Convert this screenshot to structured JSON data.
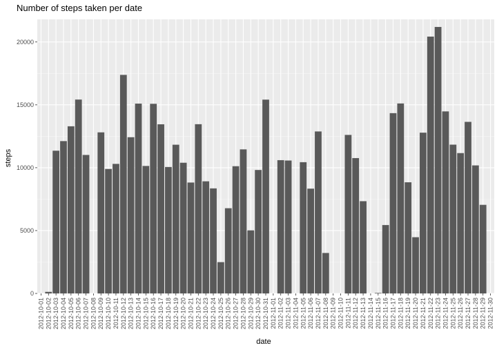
{
  "chart_data": {
    "type": "bar",
    "title": "Number of steps taken per date",
    "xlabel": "date",
    "ylabel": "steps",
    "ylim": [
      0,
      21800
    ],
    "yticks": [
      0,
      5000,
      10000,
      15000,
      20000
    ],
    "grid": true,
    "colors": {
      "panel": "#ebebeb",
      "grid_major": "#ffffff",
      "bar": "#595959"
    },
    "categories": [
      "2012-10-01",
      "2012-10-02",
      "2012-10-03",
      "2012-10-04",
      "2012-10-05",
      "2012-10-06",
      "2012-10-07",
      "2012-10-08",
      "2012-10-09",
      "2012-10-10",
      "2012-10-11",
      "2012-10-12",
      "2012-10-13",
      "2012-10-14",
      "2012-10-15",
      "2012-10-16",
      "2012-10-17",
      "2012-10-18",
      "2012-10-19",
      "2012-10-20",
      "2012-10-21",
      "2012-10-22",
      "2012-10-23",
      "2012-10-24",
      "2012-10-25",
      "2012-10-26",
      "2012-10-27",
      "2012-10-28",
      "2012-10-29",
      "2012-10-30",
      "2012-10-31",
      "2012-11-01",
      "2012-11-02",
      "2012-11-03",
      "2012-11-04",
      "2012-11-05",
      "2012-11-06",
      "2012-11-07",
      "2012-11-08",
      "2012-11-09",
      "2012-11-10",
      "2012-11-11",
      "2012-11-12",
      "2012-11-13",
      "2012-11-14",
      "2012-11-15",
      "2012-11-16",
      "2012-11-17",
      "2012-11-18",
      "2012-11-19",
      "2012-11-20",
      "2012-11-21",
      "2012-11-22",
      "2012-11-23",
      "2012-11-24",
      "2012-11-25",
      "2012-11-26",
      "2012-11-27",
      "2012-11-28",
      "2012-11-29",
      "2012-11-30"
    ],
    "values": [
      0,
      126,
      11352,
      12116,
      13294,
      15420,
      11015,
      0,
      12811,
      9900,
      10304,
      17382,
      12426,
      15098,
      10139,
      15084,
      13452,
      10056,
      11829,
      10395,
      8821,
      13460,
      8918,
      8355,
      2492,
      6778,
      10119,
      11458,
      5018,
      9819,
      15414,
      0,
      10600,
      10571,
      0,
      10439,
      8334,
      12883,
      3219,
      0,
      0,
      12608,
      10765,
      7336,
      0,
      41,
      5441,
      14339,
      15110,
      8841,
      4472,
      12787,
      20427,
      21194,
      14478,
      11834,
      11162,
      13646,
      10183,
      7047,
      0
    ]
  }
}
